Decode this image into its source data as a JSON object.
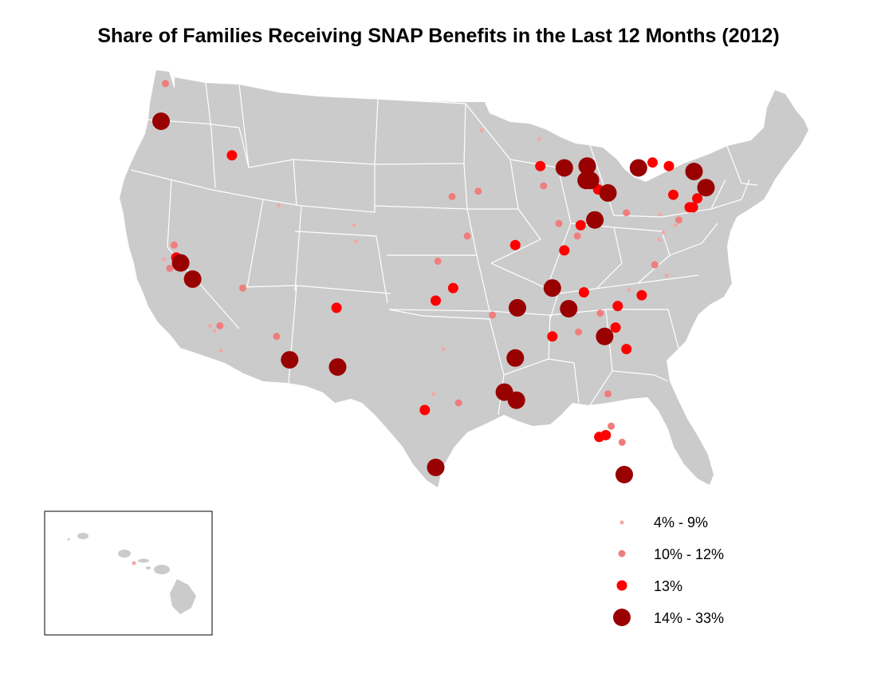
{
  "title": "Share of Families Receiving SNAP Benefits in the Last 12 Months (2012)",
  "colors": {
    "land": "#cbcbcb",
    "borders": "#ffffff",
    "background": "#ffffff",
    "small": "#f2a8a8",
    "medium": "#f07d7d",
    "large": "#ff0000",
    "largest": "#990000"
  },
  "legend": {
    "items": [
      {
        "key": "small",
        "label": "4% - 9%"
      },
      {
        "key": "medium",
        "label": "10% - 12%"
      },
      {
        "key": "large",
        "label": "13%"
      },
      {
        "key": "largest",
        "label": "14% - 33%"
      }
    ]
  },
  "inset": {
    "label": "Hawaii"
  },
  "map_data": {
    "type": "proportional-symbol-map",
    "region": "United States",
    "points": [
      {
        "lon": -122.3,
        "lat": 47.6,
        "class": "medium"
      },
      {
        "lon": -122.7,
        "lat": 45.5,
        "class": "largest"
      },
      {
        "lon": -116.2,
        "lat": 43.6,
        "class": "large"
      },
      {
        "lon": -122.4,
        "lat": 37.8,
        "class": "small"
      },
      {
        "lon": -121.9,
        "lat": 37.3,
        "class": "medium"
      },
      {
        "lon": -121.5,
        "lat": 38.6,
        "class": "medium"
      },
      {
        "lon": -121.3,
        "lat": 37.9,
        "class": "large"
      },
      {
        "lon": -120.9,
        "lat": 37.6,
        "class": "largest"
      },
      {
        "lon": -119.8,
        "lat": 36.7,
        "class": "largest"
      },
      {
        "lon": -118.2,
        "lat": 34.1,
        "class": "small"
      },
      {
        "lon": -117.8,
        "lat": 33.8,
        "class": "small"
      },
      {
        "lon": -117.3,
        "lat": 34.1,
        "class": "medium"
      },
      {
        "lon": -117.2,
        "lat": 32.7,
        "class": "small"
      },
      {
        "lon": -115.2,
        "lat": 36.2,
        "class": "medium"
      },
      {
        "lon": -112.1,
        "lat": 33.5,
        "class": "medium"
      },
      {
        "lon": -110.9,
        "lat": 32.2,
        "class": "largest"
      },
      {
        "lon": -111.9,
        "lat": 40.8,
        "class": "small"
      },
      {
        "lon": -104.99,
        "lat": 39.7,
        "class": "small"
      },
      {
        "lon": -104.8,
        "lat": 38.8,
        "class": "small"
      },
      {
        "lon": -106.6,
        "lat": 35.1,
        "class": "large"
      },
      {
        "lon": -106.5,
        "lat": 31.8,
        "class": "largest"
      },
      {
        "lon": -98.5,
        "lat": 29.4,
        "class": "large"
      },
      {
        "lon": -97.7,
        "lat": 30.3,
        "class": "small"
      },
      {
        "lon": -97.5,
        "lat": 26.2,
        "class": "largest"
      },
      {
        "lon": -95.4,
        "lat": 29.8,
        "class": "medium"
      },
      {
        "lon": -96.8,
        "lat": 32.8,
        "class": "small"
      },
      {
        "lon": -97.5,
        "lat": 35.5,
        "class": "large"
      },
      {
        "lon": -95.9,
        "lat": 36.2,
        "class": "large"
      },
      {
        "lon": -97.3,
        "lat": 37.7,
        "class": "medium"
      },
      {
        "lon": -94.6,
        "lat": 39.1,
        "class": "medium"
      },
      {
        "lon": -96.0,
        "lat": 41.3,
        "class": "medium"
      },
      {
        "lon": -93.6,
        "lat": 41.6,
        "class": "medium"
      },
      {
        "lon": -93.3,
        "lat": 45.0,
        "class": "small"
      },
      {
        "lon": -92.3,
        "lat": 34.7,
        "class": "medium"
      },
      {
        "lon": -90.2,
        "lat": 38.6,
        "class": "large"
      },
      {
        "lon": -90.0,
        "lat": 35.1,
        "class": "largest"
      },
      {
        "lon": -90.2,
        "lat": 32.3,
        "class": "largest"
      },
      {
        "lon": -91.2,
        "lat": 30.4,
        "class": "largest"
      },
      {
        "lon": -90.1,
        "lat": 29.95,
        "class": "largest"
      },
      {
        "lon": -87.9,
        "lat": 43.0,
        "class": "large"
      },
      {
        "lon": -88.0,
        "lat": 44.5,
        "class": "small"
      },
      {
        "lon": -87.6,
        "lat": 41.9,
        "class": "medium"
      },
      {
        "lon": -86.8,
        "lat": 36.2,
        "class": "largest"
      },
      {
        "lon": -86.8,
        "lat": 33.5,
        "class": "large"
      },
      {
        "lon": -85.7,
        "lat": 38.3,
        "class": "large"
      },
      {
        "lon": -86.2,
        "lat": 39.8,
        "class": "medium"
      },
      {
        "lon": -84.5,
        "lat": 39.1,
        "class": "medium"
      },
      {
        "lon": -85.7,
        "lat": 42.9,
        "class": "largest"
      },
      {
        "lon": -83.6,
        "lat": 43.0,
        "class": "largest"
      },
      {
        "lon": -83.7,
        "lat": 42.2,
        "class": "largest"
      },
      {
        "lon": -83.3,
        "lat": 42.2,
        "class": "largest"
      },
      {
        "lon": -82.6,
        "lat": 41.7,
        "class": "large"
      },
      {
        "lon": -81.7,
        "lat": 41.5,
        "class": "largest"
      },
      {
        "lon": -82.9,
        "lat": 40.0,
        "class": "largest"
      },
      {
        "lon": -84.2,
        "lat": 39.7,
        "class": "large"
      },
      {
        "lon": -80.0,
        "lat": 40.4,
        "class": "medium"
      },
      {
        "lon": -78.9,
        "lat": 42.9,
        "class": "largest"
      },
      {
        "lon": -77.6,
        "lat": 43.2,
        "class": "large"
      },
      {
        "lon": -76.1,
        "lat": 43.0,
        "class": "large"
      },
      {
        "lon": -73.8,
        "lat": 42.7,
        "class": "largest"
      },
      {
        "lon": -72.7,
        "lat": 41.8,
        "class": "largest"
      },
      {
        "lon": -73.5,
        "lat": 41.2,
        "class": "large"
      },
      {
        "lon": -73.9,
        "lat": 40.7,
        "class": "large"
      },
      {
        "lon": -74.2,
        "lat": 40.7,
        "class": "large"
      },
      {
        "lon": -75.2,
        "lat": 40.0,
        "class": "medium"
      },
      {
        "lon": -75.5,
        "lat": 39.7,
        "class": "small"
      },
      {
        "lon": -76.6,
        "lat": 39.3,
        "class": "small"
      },
      {
        "lon": -77.0,
        "lat": 38.9,
        "class": "small"
      },
      {
        "lon": -76.9,
        "lat": 40.3,
        "class": "small"
      },
      {
        "lon": -75.7,
        "lat": 41.4,
        "class": "large"
      },
      {
        "lon": -77.4,
        "lat": 37.5,
        "class": "medium"
      },
      {
        "lon": -76.3,
        "lat": 36.9,
        "class": "small"
      },
      {
        "lon": -78.6,
        "lat": 35.8,
        "class": "large"
      },
      {
        "lon": -79.8,
        "lat": 36.1,
        "class": "small"
      },
      {
        "lon": -80.8,
        "lat": 35.2,
        "class": "large"
      },
      {
        "lon": -81.0,
        "lat": 34.0,
        "class": "large"
      },
      {
        "lon": -82.0,
        "lat": 33.5,
        "class": "largest"
      },
      {
        "lon": -82.4,
        "lat": 34.8,
        "class": "medium"
      },
      {
        "lon": -84.4,
        "lat": 33.75,
        "class": "medium"
      },
      {
        "lon": -85.3,
        "lat": 35.05,
        "class": "largest"
      },
      {
        "lon": -83.9,
        "lat": 35.96,
        "class": "large"
      },
      {
        "lon": -80.0,
        "lat": 32.8,
        "class": "large"
      },
      {
        "lon": -81.7,
        "lat": 30.3,
        "class": "medium"
      },
      {
        "lon": -81.4,
        "lat": 28.5,
        "class": "medium"
      },
      {
        "lon": -81.9,
        "lat": 28.0,
        "class": "large"
      },
      {
        "lon": -82.5,
        "lat": 27.9,
        "class": "large"
      },
      {
        "lon": -80.4,
        "lat": 27.6,
        "class": "medium"
      },
      {
        "lon": -80.2,
        "lat": 25.8,
        "class": "largest"
      },
      {
        "lon": -157.9,
        "lat": 21.3,
        "class": "small"
      }
    ]
  }
}
